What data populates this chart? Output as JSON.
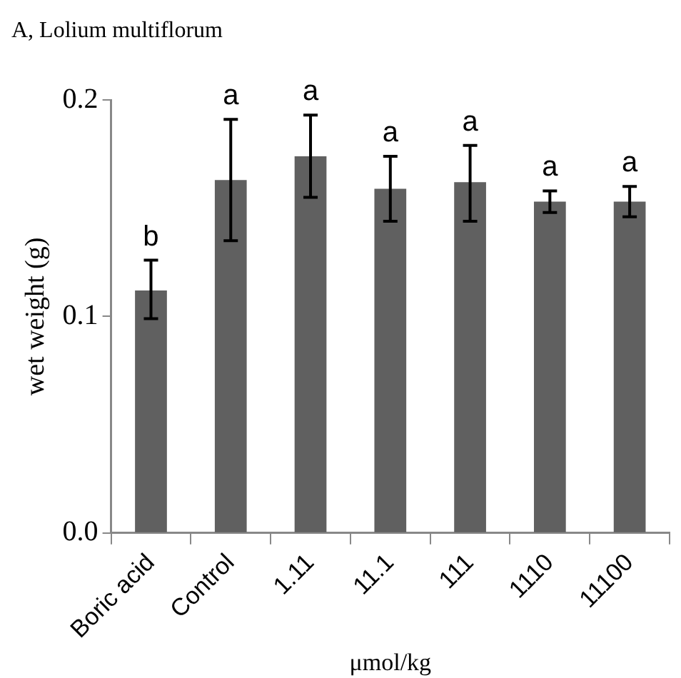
{
  "chart_data": {
    "type": "bar",
    "title": "A, Lolium multiflorum",
    "xlabel": "μmol/kg",
    "ylabel": "wet weight (g)",
    "categories": [
      "Boric acid",
      "Control",
      "1.11",
      "11.1",
      "111",
      "1110",
      "11100"
    ],
    "values": [
      0.112,
      0.163,
      0.174,
      0.159,
      0.162,
      0.153,
      0.153
    ],
    "errors": [
      [
        0.099,
        0.126
      ],
      [
        0.135,
        0.191
      ],
      [
        0.155,
        0.193
      ],
      [
        0.144,
        0.174
      ],
      [
        0.144,
        0.179
      ],
      [
        0.148,
        0.158
      ],
      [
        0.146,
        0.16
      ]
    ],
    "color": "#606060",
    "ylim": [
      0,
      0.2
    ],
    "yticks": [
      {
        "value": 0,
        "label": "0.0"
      },
      {
        "value": 0.1,
        "label": "0.1"
      },
      {
        "value": 0.2,
        "label": "0.2"
      }
    ],
    "grid": false,
    "legend": false,
    "annotations": [
      {
        "text": "b",
        "x": "Boric acid",
        "y": 0.126
      },
      {
        "text": "a",
        "x": "Control",
        "y": 0.191
      },
      {
        "text": "a",
        "x": "1.11",
        "y": 0.193
      },
      {
        "text": "a",
        "x": "11.1",
        "y": 0.174
      },
      {
        "text": "a",
        "x": "111",
        "y": 0.179
      },
      {
        "text": "a",
        "x": "1110",
        "y": 0.158
      },
      {
        "text": "a",
        "x": "11100",
        "y": 0.16
      }
    ]
  }
}
